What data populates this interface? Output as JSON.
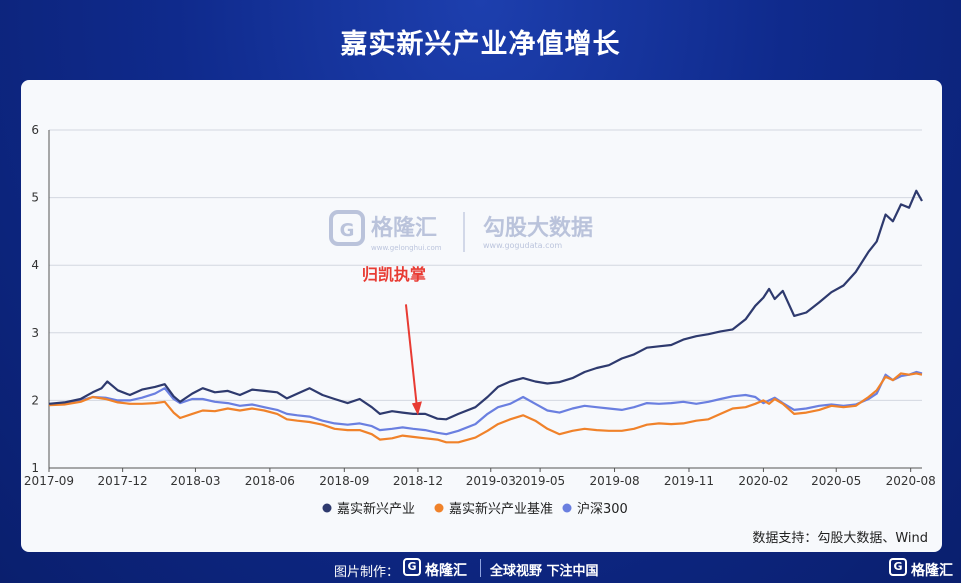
{
  "page": {
    "title": "嘉实新兴产业净值增长",
    "source": "数据支持：勾股大数据、Wind",
    "footer": {
      "made_by": "图片制作：",
      "logo_glyph": "G",
      "brand": "格隆汇",
      "slogan": "全球视野 下注中国",
      "brand_right": "格隆汇"
    },
    "watermark": {
      "left_brand": "格隆汇",
      "left_url": "www.gelonghui.com",
      "right_brand": "勾股大数据",
      "right_url": "www.gogudata.com"
    }
  },
  "chart_data": {
    "type": "line",
    "title": "嘉实新兴产业净值增长",
    "xlabel": "",
    "ylabel": "",
    "ylim": [
      1,
      6
    ],
    "yticks": [
      "1",
      "2",
      "3",
      "4",
      "5",
      "6"
    ],
    "x_tick_labels": [
      "2017-09",
      "2017-12",
      "2018-03",
      "2018-06",
      "2018-09",
      "2018-12",
      "2019-03",
      "2019-05",
      "2019-08",
      "2019-11",
      "2020-02",
      "2020-05",
      "2020-08"
    ],
    "x_range": [
      "2017-09",
      "2020-08"
    ],
    "grid": "horizontal",
    "legend_position": "bottom",
    "annotation": {
      "text": "归凯执掌",
      "date": "2018-12",
      "value": 1.72,
      "color": "#e83b33"
    },
    "series": [
      {
        "name": "嘉实新兴产业",
        "color": "#2e3a6e",
        "points": [
          [
            "2017-09-01",
            1.95
          ],
          [
            "2017-09-20",
            1.97
          ],
          [
            "2017-10-10",
            2.02
          ],
          [
            "2017-10-25",
            2.12
          ],
          [
            "2017-11-05",
            2.18
          ],
          [
            "2017-11-12",
            2.28
          ],
          [
            "2017-11-25",
            2.15
          ],
          [
            "2017-12-10",
            2.08
          ],
          [
            "2017-12-25",
            2.16
          ],
          [
            "2018-01-10",
            2.2
          ],
          [
            "2018-01-22",
            2.24
          ],
          [
            "2018-02-02",
            2.06
          ],
          [
            "2018-02-10",
            1.98
          ],
          [
            "2018-02-25",
            2.1
          ],
          [
            "2018-03-10",
            2.18
          ],
          [
            "2018-03-25",
            2.12
          ],
          [
            "2018-04-10",
            2.14
          ],
          [
            "2018-04-25",
            2.08
          ],
          [
            "2018-05-10",
            2.16
          ],
          [
            "2018-05-25",
            2.14
          ],
          [
            "2018-06-10",
            2.12
          ],
          [
            "2018-06-22",
            2.03
          ],
          [
            "2018-07-05",
            2.1
          ],
          [
            "2018-07-20",
            2.18
          ],
          [
            "2018-08-05",
            2.08
          ],
          [
            "2018-08-20",
            2.02
          ],
          [
            "2018-09-05",
            1.96
          ],
          [
            "2018-09-20",
            2.02
          ],
          [
            "2018-10-05",
            1.9
          ],
          [
            "2018-10-15",
            1.8
          ],
          [
            "2018-10-30",
            1.84
          ],
          [
            "2018-11-12",
            1.82
          ],
          [
            "2018-11-25",
            1.8
          ],
          [
            "2018-12-10",
            1.8
          ],
          [
            "2018-12-25",
            1.73
          ],
          [
            "2019-01-05",
            1.72
          ],
          [
            "2019-01-20",
            1.8
          ],
          [
            "2019-02-10",
            1.9
          ],
          [
            "2019-02-25",
            2.05
          ],
          [
            "2019-03-10",
            2.2
          ],
          [
            "2019-03-25",
            2.28
          ],
          [
            "2019-04-10",
            2.33
          ],
          [
            "2019-04-25",
            2.28
          ],
          [
            "2019-05-10",
            2.25
          ],
          [
            "2019-05-25",
            2.27
          ],
          [
            "2019-06-10",
            2.33
          ],
          [
            "2019-06-25",
            2.42
          ],
          [
            "2019-07-10",
            2.48
          ],
          [
            "2019-07-25",
            2.52
          ],
          [
            "2019-08-10",
            2.62
          ],
          [
            "2019-08-25",
            2.68
          ],
          [
            "2019-09-10",
            2.78
          ],
          [
            "2019-09-25",
            2.8
          ],
          [
            "2019-10-10",
            2.82
          ],
          [
            "2019-10-25",
            2.9
          ],
          [
            "2019-11-10",
            2.95
          ],
          [
            "2019-11-25",
            2.98
          ],
          [
            "2019-12-10",
            3.02
          ],
          [
            "2019-12-25",
            3.05
          ],
          [
            "2020-01-10",
            3.2
          ],
          [
            "2020-01-22",
            3.4
          ],
          [
            "2020-02-01",
            3.52
          ],
          [
            "2020-02-08",
            3.65
          ],
          [
            "2020-02-15",
            3.5
          ],
          [
            "2020-02-25",
            3.62
          ],
          [
            "2020-03-10",
            3.25
          ],
          [
            "2020-03-25",
            3.3
          ],
          [
            "2020-04-10",
            3.45
          ],
          [
            "2020-04-25",
            3.6
          ],
          [
            "2020-05-10",
            3.7
          ],
          [
            "2020-05-25",
            3.9
          ],
          [
            "2020-06-10",
            4.2
          ],
          [
            "2020-06-20",
            4.35
          ],
          [
            "2020-07-01",
            4.75
          ],
          [
            "2020-07-10",
            4.65
          ],
          [
            "2020-07-20",
            4.9
          ],
          [
            "2020-07-30",
            4.85
          ],
          [
            "2020-08-08",
            5.1
          ],
          [
            "2020-08-15",
            4.95
          ]
        ]
      },
      {
        "name": "嘉实新兴产业基准",
        "color": "#f0822a",
        "points": [
          [
            "2017-09-01",
            1.93
          ],
          [
            "2017-09-20",
            1.94
          ],
          [
            "2017-10-10",
            1.98
          ],
          [
            "2017-10-25",
            2.05
          ],
          [
            "2017-11-10",
            2.02
          ],
          [
            "2017-11-25",
            1.97
          ],
          [
            "2017-12-10",
            1.95
          ],
          [
            "2017-12-25",
            1.95
          ],
          [
            "2018-01-10",
            1.96
          ],
          [
            "2018-01-22",
            1.98
          ],
          [
            "2018-02-02",
            1.82
          ],
          [
            "2018-02-10",
            1.74
          ],
          [
            "2018-02-25",
            1.8
          ],
          [
            "2018-03-10",
            1.85
          ],
          [
            "2018-03-25",
            1.84
          ],
          [
            "2018-04-10",
            1.88
          ],
          [
            "2018-04-25",
            1.85
          ],
          [
            "2018-05-10",
            1.88
          ],
          [
            "2018-05-25",
            1.85
          ],
          [
            "2018-06-10",
            1.8
          ],
          [
            "2018-06-22",
            1.72
          ],
          [
            "2018-07-05",
            1.7
          ],
          [
            "2018-07-20",
            1.68
          ],
          [
            "2018-08-05",
            1.64
          ],
          [
            "2018-08-20",
            1.58
          ],
          [
            "2018-09-05",
            1.56
          ],
          [
            "2018-09-20",
            1.56
          ],
          [
            "2018-10-05",
            1.5
          ],
          [
            "2018-10-15",
            1.42
          ],
          [
            "2018-10-30",
            1.44
          ],
          [
            "2018-11-12",
            1.48
          ],
          [
            "2018-11-25",
            1.46
          ],
          [
            "2018-12-10",
            1.44
          ],
          [
            "2018-12-25",
            1.42
          ],
          [
            "2019-01-05",
            1.38
          ],
          [
            "2019-01-20",
            1.38
          ],
          [
            "2019-02-10",
            1.45
          ],
          [
            "2019-02-25",
            1.55
          ],
          [
            "2019-03-10",
            1.65
          ],
          [
            "2019-03-25",
            1.72
          ],
          [
            "2019-04-10",
            1.78
          ],
          [
            "2019-04-25",
            1.7
          ],
          [
            "2019-05-10",
            1.58
          ],
          [
            "2019-05-25",
            1.5
          ],
          [
            "2019-06-10",
            1.55
          ],
          [
            "2019-06-25",
            1.58
          ],
          [
            "2019-07-10",
            1.56
          ],
          [
            "2019-07-25",
            1.55
          ],
          [
            "2019-08-10",
            1.55
          ],
          [
            "2019-08-25",
            1.58
          ],
          [
            "2019-09-10",
            1.64
          ],
          [
            "2019-09-25",
            1.66
          ],
          [
            "2019-10-10",
            1.65
          ],
          [
            "2019-10-25",
            1.66
          ],
          [
            "2019-11-10",
            1.7
          ],
          [
            "2019-11-25",
            1.72
          ],
          [
            "2019-12-10",
            1.8
          ],
          [
            "2019-12-25",
            1.88
          ],
          [
            "2020-01-10",
            1.9
          ],
          [
            "2020-01-22",
            1.95
          ],
          [
            "2020-02-01",
            2.0
          ],
          [
            "2020-02-08",
            1.95
          ],
          [
            "2020-02-15",
            2.02
          ],
          [
            "2020-02-25",
            1.95
          ],
          [
            "2020-03-10",
            1.8
          ],
          [
            "2020-03-25",
            1.82
          ],
          [
            "2020-04-10",
            1.86
          ],
          [
            "2020-04-25",
            1.92
          ],
          [
            "2020-05-10",
            1.9
          ],
          [
            "2020-05-25",
            1.92
          ],
          [
            "2020-06-10",
            2.05
          ],
          [
            "2020-06-20",
            2.15
          ],
          [
            "2020-07-01",
            2.35
          ],
          [
            "2020-07-10",
            2.3
          ],
          [
            "2020-07-20",
            2.4
          ],
          [
            "2020-07-30",
            2.38
          ],
          [
            "2020-08-08",
            2.4
          ],
          [
            "2020-08-15",
            2.38
          ]
        ]
      },
      {
        "name": "沪深300",
        "color": "#6a7fe0",
        "points": [
          [
            "2017-09-01",
            1.94
          ],
          [
            "2017-09-20",
            1.95
          ],
          [
            "2017-10-10",
            2.0
          ],
          [
            "2017-10-25",
            2.05
          ],
          [
            "2017-11-10",
            2.04
          ],
          [
            "2017-11-25",
            2.0
          ],
          [
            "2017-12-10",
            2.0
          ],
          [
            "2017-12-25",
            2.04
          ],
          [
            "2018-01-10",
            2.1
          ],
          [
            "2018-01-22",
            2.18
          ],
          [
            "2018-02-02",
            2.02
          ],
          [
            "2018-02-10",
            1.96
          ],
          [
            "2018-02-25",
            2.02
          ],
          [
            "2018-03-10",
            2.02
          ],
          [
            "2018-03-25",
            1.98
          ],
          [
            "2018-04-10",
            1.96
          ],
          [
            "2018-04-25",
            1.92
          ],
          [
            "2018-05-10",
            1.94
          ],
          [
            "2018-05-25",
            1.9
          ],
          [
            "2018-06-10",
            1.86
          ],
          [
            "2018-06-22",
            1.8
          ],
          [
            "2018-07-05",
            1.78
          ],
          [
            "2018-07-20",
            1.76
          ],
          [
            "2018-08-05",
            1.7
          ],
          [
            "2018-08-20",
            1.66
          ],
          [
            "2018-09-05",
            1.64
          ],
          [
            "2018-09-20",
            1.66
          ],
          [
            "2018-10-05",
            1.62
          ],
          [
            "2018-10-15",
            1.56
          ],
          [
            "2018-10-30",
            1.58
          ],
          [
            "2018-11-12",
            1.6
          ],
          [
            "2018-11-25",
            1.58
          ],
          [
            "2018-12-10",
            1.56
          ],
          [
            "2018-12-25",
            1.52
          ],
          [
            "2019-01-05",
            1.5
          ],
          [
            "2019-01-20",
            1.55
          ],
          [
            "2019-02-10",
            1.65
          ],
          [
            "2019-02-25",
            1.8
          ],
          [
            "2019-03-10",
            1.9
          ],
          [
            "2019-03-25",
            1.95
          ],
          [
            "2019-04-10",
            2.05
          ],
          [
            "2019-04-25",
            1.95
          ],
          [
            "2019-05-10",
            1.85
          ],
          [
            "2019-05-25",
            1.82
          ],
          [
            "2019-06-10",
            1.88
          ],
          [
            "2019-06-25",
            1.92
          ],
          [
            "2019-07-10",
            1.9
          ],
          [
            "2019-07-25",
            1.88
          ],
          [
            "2019-08-10",
            1.86
          ],
          [
            "2019-08-25",
            1.9
          ],
          [
            "2019-09-10",
            1.96
          ],
          [
            "2019-09-25",
            1.95
          ],
          [
            "2019-10-10",
            1.96
          ],
          [
            "2019-10-25",
            1.98
          ],
          [
            "2019-11-10",
            1.95
          ],
          [
            "2019-11-25",
            1.98
          ],
          [
            "2019-12-10",
            2.02
          ],
          [
            "2019-12-25",
            2.06
          ],
          [
            "2020-01-10",
            2.08
          ],
          [
            "2020-01-22",
            2.05
          ],
          [
            "2020-02-01",
            1.96
          ],
          [
            "2020-02-08",
            2.0
          ],
          [
            "2020-02-15",
            2.04
          ],
          [
            "2020-02-25",
            1.96
          ],
          [
            "2020-03-10",
            1.86
          ],
          [
            "2020-03-25",
            1.88
          ],
          [
            "2020-04-10",
            1.92
          ],
          [
            "2020-04-25",
            1.94
          ],
          [
            "2020-05-10",
            1.92
          ],
          [
            "2020-05-25",
            1.94
          ],
          [
            "2020-06-10",
            2.02
          ],
          [
            "2020-06-20",
            2.1
          ],
          [
            "2020-07-01",
            2.38
          ],
          [
            "2020-07-10",
            2.3
          ],
          [
            "2020-07-20",
            2.36
          ],
          [
            "2020-07-30",
            2.38
          ],
          [
            "2020-08-08",
            2.42
          ],
          [
            "2020-08-15",
            2.4
          ]
        ]
      }
    ]
  }
}
